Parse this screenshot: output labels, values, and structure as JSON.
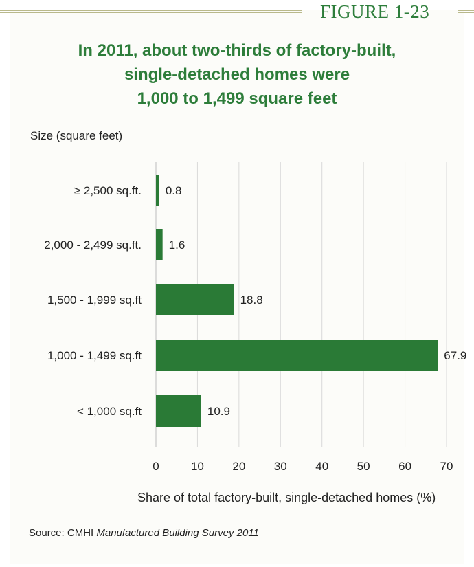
{
  "figure": {
    "label": "FIGURE 1-23",
    "title_lines": [
      "In 2011, about two-thirds of factory-built,",
      "single-detached homes were",
      "1,000 to 1,499 square feet"
    ],
    "source_prefix": "Source: CMHI ",
    "source_title": "Manufactured Building Survey 2011"
  },
  "colors": {
    "bar": "#2a7a36",
    "accent": "#2d7d3a",
    "grid": "#d9d9d9",
    "rule": "#b9b98c"
  },
  "chart_data": {
    "type": "bar",
    "orientation": "horizontal",
    "title": "In 2011, about two-thirds of factory-built, single-detached homes were 1,000 to 1,499 square feet",
    "ylabel": "Size (square feet)",
    "xlabel": "Share of total factory-built, single-detached homes (%)",
    "categories": [
      "≥ 2,500 sq.ft.",
      "2,000 - 2,499 sq.ft.",
      "1,500 - 1,999 sq.ft",
      "1,000 - 1,499 sq.ft",
      "< 1,000 sq.ft"
    ],
    "values": [
      0.8,
      1.6,
      18.8,
      67.9,
      10.9
    ],
    "data_labels": [
      "0.8",
      "1.6",
      "18.8",
      "67.9",
      "10.9"
    ],
    "xlim": [
      0,
      70
    ],
    "xticks": [
      0,
      10,
      20,
      30,
      40,
      50,
      60,
      70
    ],
    "grid": "vertical",
    "legend": "none"
  }
}
